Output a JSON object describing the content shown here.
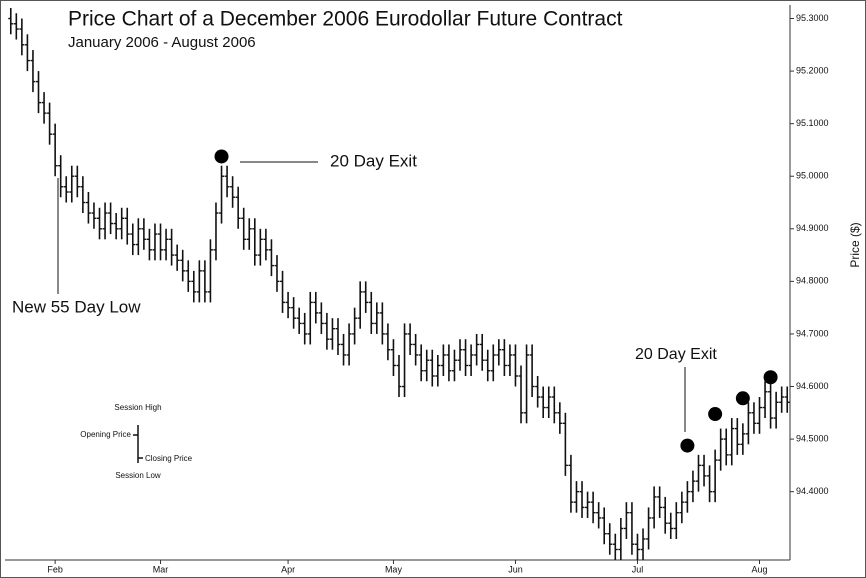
{
  "chart_data": {
    "type": "ohlc",
    "title": "Price Chart of a December 2006 Eurodollar Future Contract",
    "subtitle": "January 2006 - August 2006",
    "y_axis_label": "Price ($)",
    "color": "#111111",
    "categories": [
      null,
      null,
      null,
      null,
      null,
      null,
      null,
      null,
      "Feb",
      null,
      null,
      null,
      null,
      null,
      null,
      null,
      null,
      null,
      null,
      null,
      null,
      null,
      null,
      null,
      null,
      null,
      null,
      "Mar",
      null,
      null,
      null,
      null,
      null,
      null,
      null,
      null,
      null,
      null,
      null,
      null,
      null,
      null,
      null,
      null,
      null,
      null,
      null,
      null,
      null,
      null,
      "Apr",
      null,
      null,
      null,
      null,
      null,
      null,
      null,
      null,
      null,
      null,
      null,
      null,
      null,
      null,
      null,
      null,
      null,
      null,
      "May",
      null,
      null,
      null,
      null,
      null,
      null,
      null,
      null,
      null,
      null,
      null,
      null,
      null,
      null,
      null,
      null,
      null,
      null,
      null,
      null,
      null,
      "Jun",
      null,
      null,
      null,
      null,
      null,
      null,
      null,
      null,
      null,
      null,
      null,
      null,
      null,
      null,
      null,
      null,
      null,
      null,
      null,
      null,
      null,
      "Jul",
      null,
      null,
      null,
      null,
      null,
      null,
      null,
      null,
      null,
      null,
      null,
      null,
      null,
      null,
      null,
      null,
      null,
      null,
      null,
      null,
      null,
      "Aug",
      null,
      null,
      null,
      null,
      null
    ],
    "open": [
      95.3,
      95.29,
      95.28,
      95.25,
      95.22,
      95.18,
      95.14,
      95.12,
      95.08,
      95.02,
      94.98,
      94.97,
      95.0,
      94.98,
      94.95,
      94.93,
      94.92,
      94.9,
      94.93,
      94.91,
      94.9,
      94.92,
      94.89,
      94.87,
      94.9,
      94.88,
      94.86,
      94.89,
      94.86,
      94.88,
      94.85,
      94.84,
      94.82,
      94.8,
      94.78,
      94.82,
      94.78,
      94.86,
      94.93,
      95.0,
      94.98,
      94.96,
      94.92,
      94.88,
      94.9,
      94.85,
      94.88,
      94.86,
      94.83,
      94.8,
      94.76,
      94.75,
      94.73,
      94.72,
      94.7,
      94.76,
      94.74,
      94.72,
      94.69,
      94.71,
      94.68,
      94.66,
      94.7,
      94.73,
      94.78,
      94.76,
      94.72,
      94.74,
      94.7,
      94.67,
      94.64,
      94.6,
      94.7,
      94.68,
      94.66,
      94.63,
      94.65,
      94.62,
      94.64,
      94.66,
      94.63,
      94.65,
      94.67,
      94.64,
      94.66,
      94.68,
      94.65,
      94.63,
      94.66,
      94.67,
      94.64,
      94.66,
      94.62,
      94.55,
      94.66,
      94.6,
      94.58,
      94.56,
      94.58,
      94.55,
      94.53,
      94.45,
      94.38,
      94.4,
      94.37,
      94.38,
      94.36,
      94.35,
      94.32,
      94.3,
      94.29,
      94.33,
      94.36,
      94.3,
      94.29,
      94.31,
      94.35,
      94.39,
      94.37,
      94.34,
      94.33,
      94.36,
      94.38,
      94.4,
      94.42,
      94.45,
      94.43,
      94.4,
      94.46,
      94.5,
      94.47,
      94.52,
      94.49,
      94.51,
      94.55,
      94.53,
      94.56,
      94.59,
      94.54,
      94.57,
      94.58
    ],
    "high": [
      95.32,
      95.31,
      95.3,
      95.27,
      95.24,
      95.2,
      95.16,
      95.14,
      95.1,
      95.04,
      95.0,
      95.02,
      95.02,
      95.0,
      94.97,
      94.95,
      94.94,
      94.95,
      94.95,
      94.93,
      94.94,
      94.94,
      94.91,
      94.92,
      94.92,
      94.9,
      94.91,
      94.91,
      94.9,
      94.9,
      94.87,
      94.86,
      94.84,
      94.82,
      94.84,
      94.84,
      94.88,
      94.95,
      95.02,
      95.02,
      95.0,
      94.98,
      94.94,
      94.92,
      94.92,
      94.9,
      94.9,
      94.88,
      94.85,
      94.82,
      94.78,
      94.77,
      94.75,
      94.74,
      94.78,
      94.78,
      94.76,
      94.74,
      94.73,
      94.73,
      94.7,
      94.72,
      94.75,
      94.8,
      94.8,
      94.78,
      94.76,
      94.76,
      94.72,
      94.69,
      94.66,
      94.72,
      94.72,
      94.7,
      94.68,
      94.67,
      94.67,
      94.66,
      94.68,
      94.68,
      94.67,
      94.69,
      94.69,
      94.68,
      94.7,
      94.7,
      94.67,
      94.68,
      94.69,
      94.69,
      94.68,
      94.68,
      94.64,
      94.68,
      94.68,
      94.62,
      94.6,
      94.6,
      94.6,
      94.57,
      94.55,
      94.47,
      94.42,
      94.42,
      94.4,
      94.4,
      94.38,
      94.37,
      94.34,
      94.32,
      94.35,
      94.38,
      94.38,
      94.32,
      94.33,
      94.37,
      94.41,
      94.41,
      94.39,
      94.36,
      94.38,
      94.4,
      94.42,
      94.44,
      94.47,
      94.47,
      94.45,
      94.48,
      94.52,
      94.52,
      94.54,
      94.54,
      94.53,
      94.57,
      94.57,
      94.58,
      94.61,
      94.61,
      94.59,
      94.6,
      94.6
    ],
    "low": [
      95.27,
      95.26,
      95.23,
      95.2,
      95.16,
      95.12,
      95.1,
      95.06,
      95.0,
      94.96,
      94.95,
      94.95,
      94.96,
      94.93,
      94.91,
      94.9,
      94.88,
      94.88,
      94.89,
      94.88,
      94.88,
      94.87,
      94.85,
      94.85,
      94.86,
      94.84,
      94.84,
      94.84,
      94.84,
      94.83,
      94.82,
      94.8,
      94.78,
      94.76,
      94.76,
      94.76,
      94.76,
      94.84,
      94.91,
      94.96,
      94.94,
      94.9,
      94.86,
      94.86,
      94.83,
      94.83,
      94.84,
      94.81,
      94.78,
      94.74,
      94.73,
      94.71,
      94.7,
      94.68,
      94.68,
      94.72,
      94.7,
      94.67,
      94.67,
      94.66,
      94.64,
      94.64,
      94.68,
      94.71,
      94.74,
      94.7,
      94.7,
      94.68,
      94.65,
      94.62,
      94.58,
      94.58,
      94.66,
      94.64,
      94.61,
      94.61,
      94.6,
      94.6,
      94.62,
      94.61,
      94.61,
      94.63,
      94.62,
      94.62,
      94.64,
      94.63,
      94.61,
      94.61,
      94.64,
      94.62,
      94.62,
      94.6,
      94.53,
      94.53,
      94.58,
      94.56,
      94.54,
      94.54,
      94.53,
      94.51,
      94.43,
      94.36,
      94.36,
      94.35,
      94.35,
      94.34,
      94.33,
      94.3,
      94.28,
      94.27,
      94.27,
      94.31,
      94.28,
      94.27,
      94.27,
      94.29,
      94.33,
      94.35,
      94.32,
      94.31,
      94.31,
      94.34,
      94.36,
      94.38,
      94.4,
      94.41,
      94.38,
      94.38,
      94.44,
      94.45,
      94.45,
      94.47,
      94.47,
      94.49,
      94.51,
      94.51,
      94.54,
      94.52,
      94.52,
      94.55,
      94.55
    ],
    "close": [
      95.29,
      95.28,
      95.25,
      95.22,
      95.18,
      95.14,
      95.12,
      95.08,
      95.02,
      94.98,
      94.97,
      95.0,
      94.98,
      94.95,
      94.93,
      94.92,
      94.9,
      94.93,
      94.91,
      94.9,
      94.92,
      94.89,
      94.87,
      94.9,
      94.88,
      94.86,
      94.89,
      94.86,
      94.88,
      94.85,
      94.84,
      94.82,
      94.8,
      94.78,
      94.82,
      94.78,
      94.86,
      94.93,
      95.0,
      94.98,
      94.96,
      94.92,
      94.88,
      94.9,
      94.85,
      94.88,
      94.86,
      94.83,
      94.8,
      94.76,
      94.75,
      94.73,
      94.72,
      94.7,
      94.76,
      94.74,
      94.72,
      94.69,
      94.71,
      94.68,
      94.66,
      94.7,
      94.73,
      94.78,
      94.76,
      94.72,
      94.74,
      94.7,
      94.67,
      94.64,
      94.6,
      94.7,
      94.68,
      94.66,
      94.63,
      94.65,
      94.62,
      94.64,
      94.66,
      94.63,
      94.65,
      94.67,
      94.64,
      94.66,
      94.68,
      94.65,
      94.63,
      94.66,
      94.67,
      94.64,
      94.66,
      94.62,
      94.55,
      94.66,
      94.6,
      94.58,
      94.56,
      94.58,
      94.55,
      94.53,
      94.45,
      94.38,
      94.4,
      94.37,
      94.38,
      94.36,
      94.35,
      94.32,
      94.3,
      94.29,
      94.33,
      94.36,
      94.3,
      94.29,
      94.31,
      94.35,
      94.39,
      94.37,
      94.34,
      94.33,
      94.36,
      94.38,
      94.4,
      94.42,
      94.45,
      94.43,
      94.4,
      94.46,
      94.5,
      94.47,
      94.52,
      94.49,
      94.51,
      94.55,
      94.53,
      94.56,
      94.59,
      94.54,
      94.57,
      94.58,
      94.57
    ],
    "exits": [
      {
        "bar": 38,
        "price": 95.03
      },
      {
        "bar": 122,
        "price": 94.48
      },
      {
        "bar": 127,
        "price": 94.54
      },
      {
        "bar": 132,
        "price": 94.57
      },
      {
        "bar": 137,
        "price": 94.61
      }
    ],
    "ylim": [
      94.27,
      95.32
    ],
    "yticks": [
      {
        "value": 94.4,
        "label": "94.4000"
      },
      {
        "value": 94.5,
        "label": "94.5000"
      },
      {
        "value": 94.6,
        "label": "94.6000"
      },
      {
        "value": 94.7,
        "label": "94.7000"
      },
      {
        "value": 94.8,
        "label": "94.8000"
      },
      {
        "value": 94.9,
        "label": "94.9000"
      },
      {
        "value": 95.0,
        "label": "95.0000"
      },
      {
        "value": 95.1,
        "label": "95.1000"
      },
      {
        "value": 95.2,
        "label": "95.2000"
      },
      {
        "value": 95.3,
        "label": "95.3000"
      }
    ],
    "annotations": [
      {
        "text": "20 Day Exit"
      },
      {
        "text": "New 55 Day Low"
      },
      {
        "text": "20 Day Exit"
      }
    ],
    "key": {
      "high": "Session High",
      "open": "Opening Price",
      "close": "Closing Price",
      "low": "Session Low"
    }
  }
}
